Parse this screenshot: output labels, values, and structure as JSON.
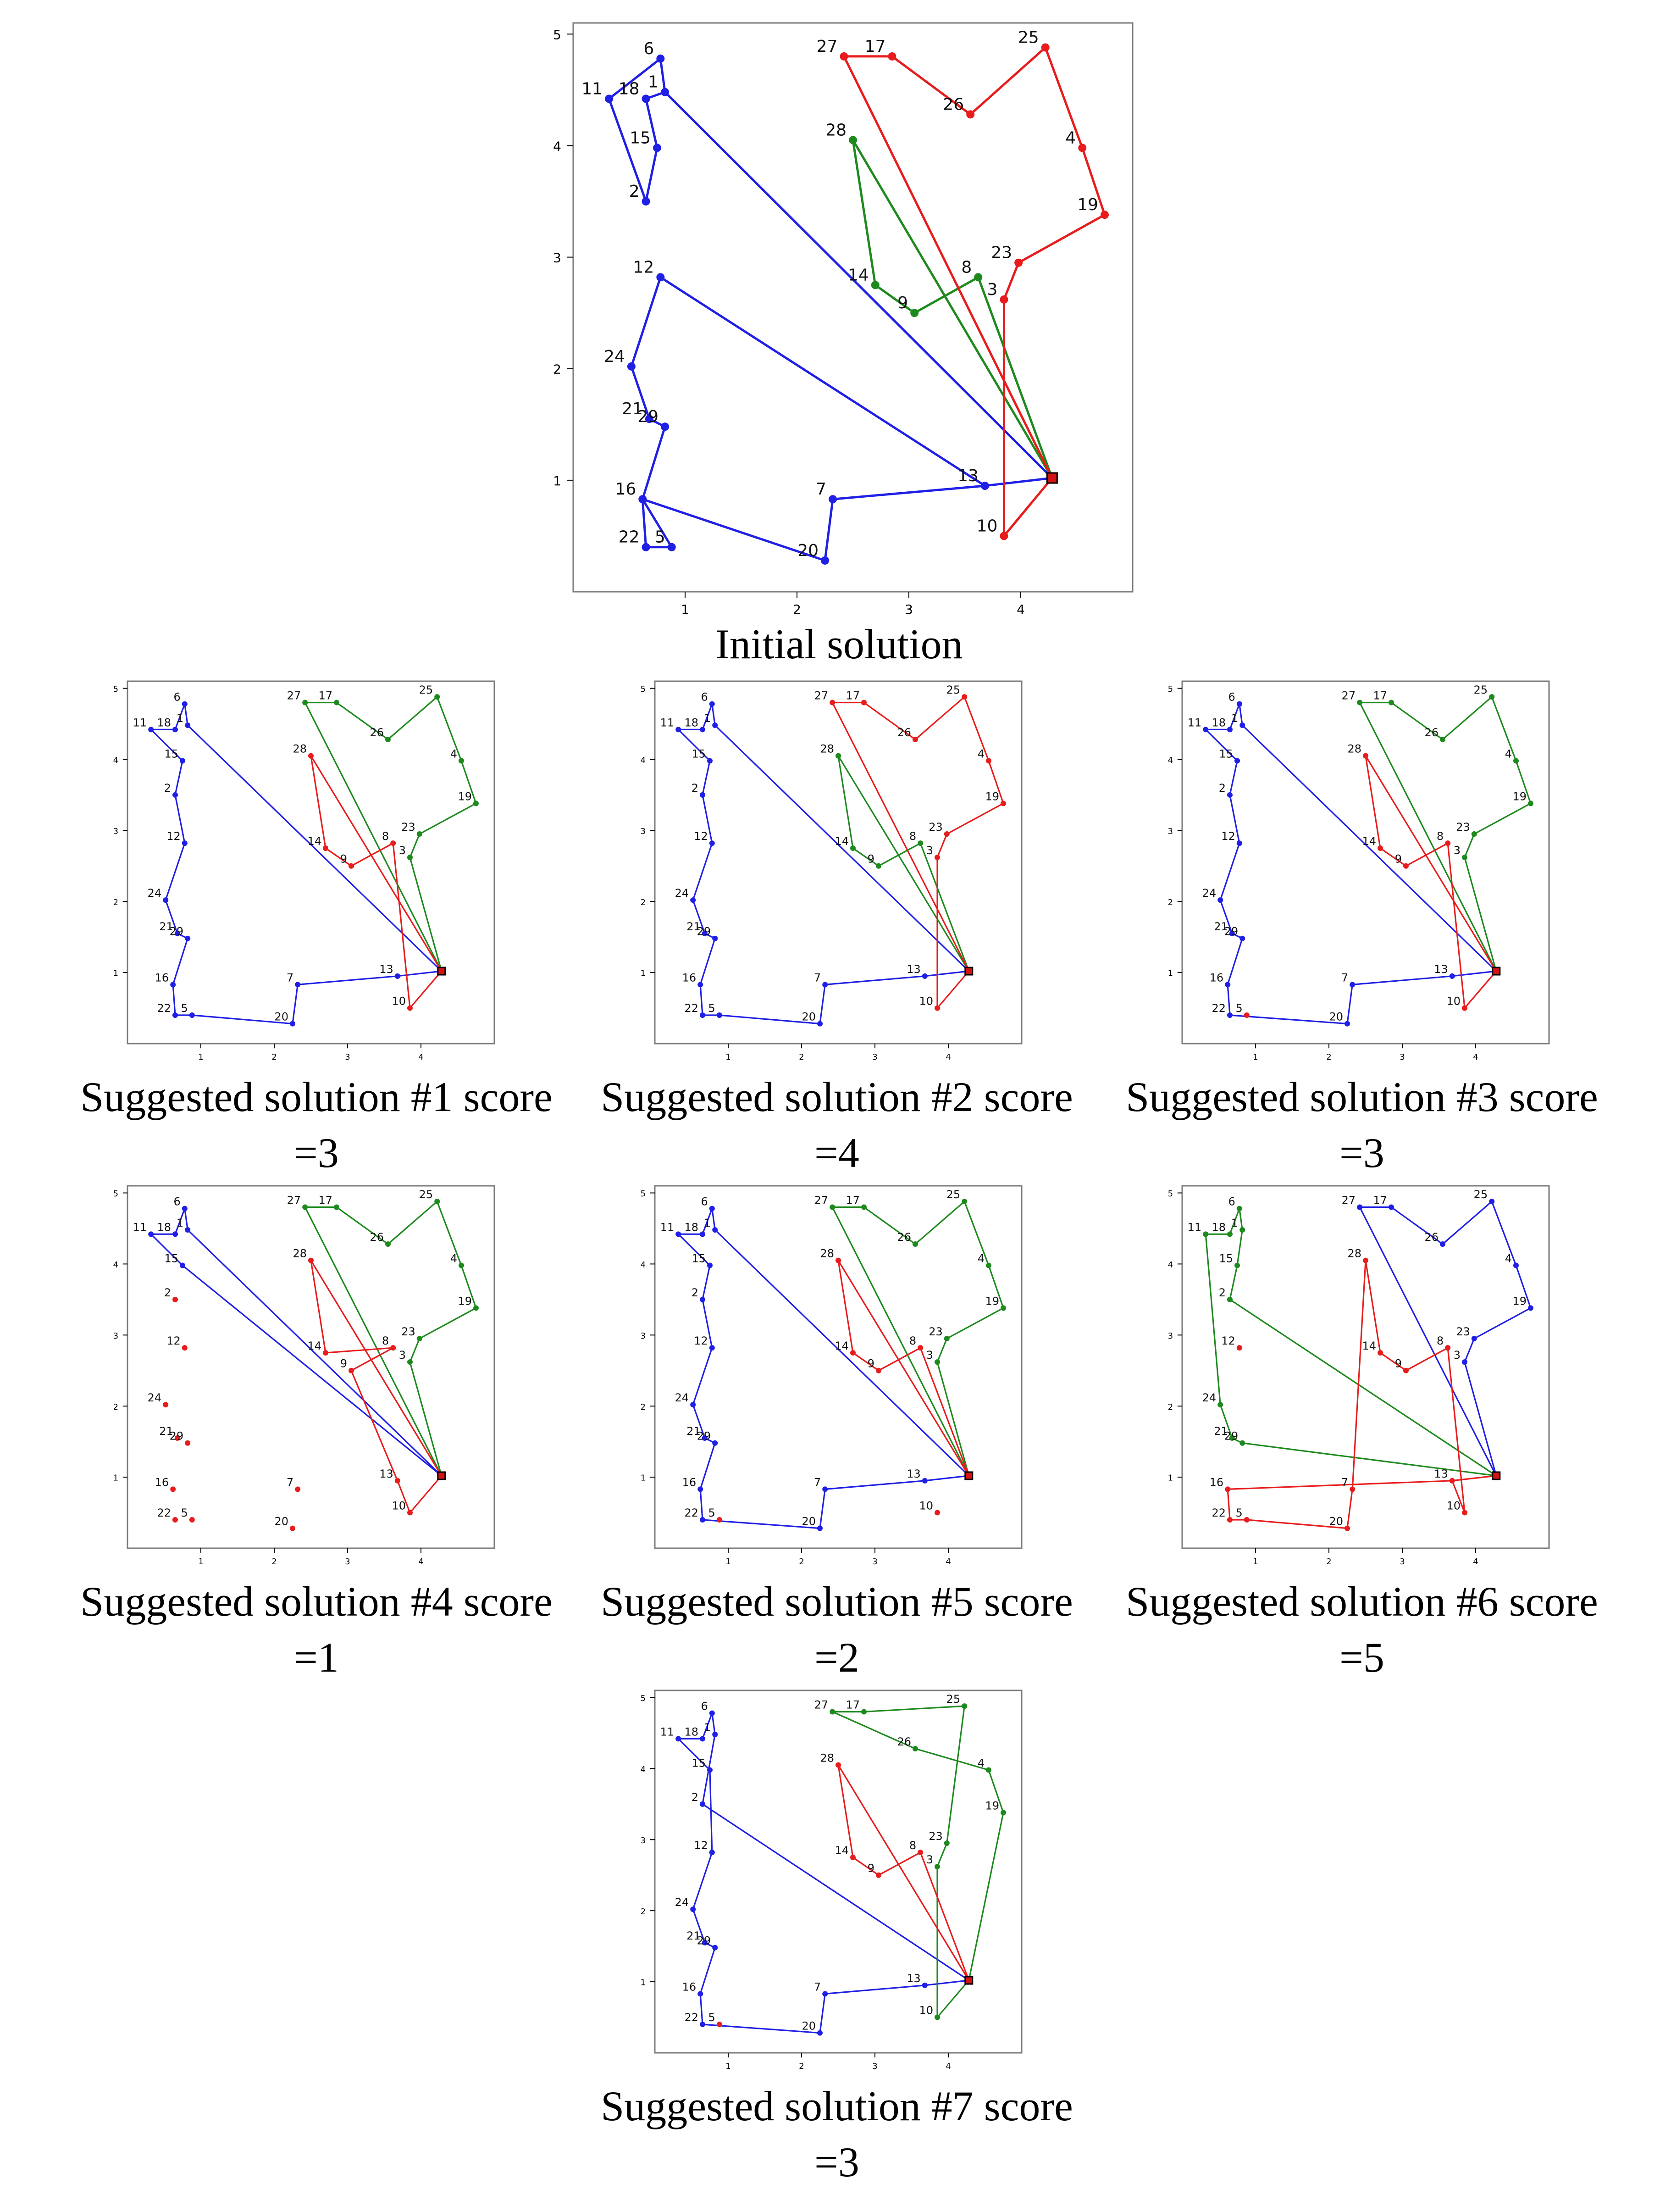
{
  "colors": {
    "blue": "#1f1fe6",
    "red": "#e81c1c",
    "green": "#1e8a1e",
    "depot": "#d41414",
    "axis": "#000000",
    "frame": "#7a7a7a"
  },
  "axis": {
    "xticks": [
      "1",
      "2",
      "3",
      "4"
    ],
    "yticks": [
      "1",
      "2",
      "3",
      "4",
      "5"
    ]
  },
  "points": {
    "1": [
      0.82,
      4.48
    ],
    "2": [
      0.65,
      3.5
    ],
    "3": [
      3.85,
      2.62
    ],
    "4": [
      4.55,
      3.98
    ],
    "5": [
      0.88,
      0.4
    ],
    "6": [
      0.78,
      4.78
    ],
    "7": [
      2.32,
      0.83
    ],
    "8": [
      3.62,
      2.82
    ],
    "9": [
      3.05,
      2.5
    ],
    "10": [
      3.85,
      0.5
    ],
    "11": [
      0.32,
      4.42
    ],
    "12": [
      0.78,
      2.82
    ],
    "13": [
      3.68,
      0.95
    ],
    "14": [
      2.7,
      2.75
    ],
    "15": [
      0.75,
      3.98
    ],
    "16": [
      0.62,
      0.83
    ],
    "17": [
      2.85,
      4.8
    ],
    "18": [
      0.65,
      4.42
    ],
    "19": [
      4.75,
      3.38
    ],
    "20": [
      2.25,
      0.28
    ],
    "21": [
      0.68,
      1.55
    ],
    "22": [
      0.65,
      0.4
    ],
    "23": [
      3.98,
      2.95
    ],
    "24": [
      0.52,
      2.02
    ],
    "25": [
      4.22,
      4.88
    ],
    "26": [
      3.55,
      4.28
    ],
    "27": [
      2.42,
      4.8
    ],
    "28": [
      2.5,
      4.05
    ],
    "29": [
      0.82,
      1.48
    ]
  },
  "depot": [
    4.28,
    1.02
  ],
  "panels": [
    {
      "caption_line1": "Initial solution",
      "caption_line2": "",
      "routes": [
        {
          "color": "blue",
          "path": [
            0,
            13,
            12,
            24,
            21,
            29,
            16,
            5,
            22,
            16,
            20,
            7,
            13,
            0
          ]
        },
        {
          "color": "blue",
          "path": [
            0,
            1,
            6,
            11,
            2,
            15,
            18,
            1,
            0
          ]
        },
        {
          "color": "green",
          "path": [
            0,
            28,
            14,
            9,
            8,
            0
          ]
        },
        {
          "color": "red",
          "path": [
            0,
            27,
            17,
            26,
            25,
            4,
            19,
            23,
            3,
            10,
            0
          ]
        }
      ],
      "isolated": []
    },
    {
      "caption_line1": "Suggested solution #1 score",
      "caption_line2": "=3",
      "routes": [
        {
          "color": "blue",
          "path": [
            0,
            1,
            6,
            18,
            11,
            15,
            2,
            12,
            24,
            21,
            29,
            16,
            22,
            5,
            20,
            7,
            13,
            0
          ]
        },
        {
          "color": "green",
          "path": [
            0,
            27,
            17,
            26,
            25,
            4,
            19,
            23,
            3,
            0
          ]
        },
        {
          "color": "red",
          "path": [
            0,
            28,
            14,
            9,
            8,
            10,
            0
          ]
        }
      ],
      "isolated": []
    },
    {
      "caption_line1": "Suggested solution #2 score",
      "caption_line2": "=4",
      "routes": [
        {
          "color": "blue",
          "path": [
            0,
            1,
            6,
            18,
            11,
            15,
            2,
            12,
            24,
            21,
            29,
            16,
            22,
            5,
            20,
            7,
            13,
            0
          ]
        },
        {
          "color": "green",
          "path": [
            0,
            28,
            14,
            9,
            8,
            0
          ]
        },
        {
          "color": "red",
          "path": [
            0,
            27,
            17,
            26,
            25,
            4,
            19,
            23,
            3,
            10,
            0
          ]
        }
      ],
      "isolated": []
    },
    {
      "caption_line1": "Suggested solution #3 score",
      "caption_line2": "=3",
      "routes": [
        {
          "color": "blue",
          "path": [
            0,
            1,
            6,
            18,
            11,
            15,
            2,
            12,
            24,
            21,
            29,
            16,
            22,
            20,
            7,
            13,
            0
          ]
        },
        {
          "color": "green",
          "path": [
            0,
            27,
            17,
            26,
            25,
            4,
            19,
            23,
            3,
            0
          ]
        },
        {
          "color": "red",
          "path": [
            0,
            28,
            14,
            9,
            8,
            10,
            0
          ]
        }
      ],
      "isolated": [
        "5"
      ]
    },
    {
      "caption_line1": "Suggested solution #4 score",
      "caption_line2": "=1",
      "routes": [
        {
          "color": "blue",
          "path": [
            0,
            1,
            6,
            18,
            11,
            15,
            0
          ]
        },
        {
          "color": "green",
          "path": [
            0,
            27,
            17,
            26,
            25,
            4,
            19,
            23,
            3,
            0
          ]
        },
        {
          "color": "red",
          "path": [
            0,
            28,
            14,
            8,
            9,
            13,
            10,
            0
          ]
        }
      ],
      "isolated": [
        "2",
        "12",
        "24",
        "21",
        "29",
        "16",
        "22",
        "5",
        "20",
        "7"
      ]
    },
    {
      "caption_line1": "Suggested solution #5 score",
      "caption_line2": "=2",
      "routes": [
        {
          "color": "blue",
          "path": [
            0,
            1,
            6,
            18,
            11,
            15,
            2,
            12,
            24,
            21,
            29,
            16,
            22,
            20,
            7,
            13,
            0
          ]
        },
        {
          "color": "green",
          "path": [
            0,
            27,
            17,
            26,
            25,
            4,
            19,
            23,
            3,
            0
          ]
        },
        {
          "color": "red",
          "path": [
            0,
            28,
            14,
            9,
            8,
            0
          ]
        }
      ],
      "isolated": [
        "5",
        "10"
      ]
    },
    {
      "caption_line1": "Suggested solution #6 score",
      "caption_line2": "=5",
      "routes": [
        {
          "color": "green",
          "path": [
            0,
            2,
            15,
            1,
            6,
            18,
            11,
            24,
            21,
            29,
            0
          ]
        },
        {
          "color": "blue",
          "path": [
            0,
            27,
            17,
            26,
            25,
            4,
            19,
            23,
            3,
            0
          ]
        },
        {
          "color": "red",
          "path": [
            0,
            13,
            10,
            8,
            9,
            14,
            28,
            7,
            20,
            5,
            22,
            16,
            13,
            0
          ]
        }
      ],
      "isolated": [
        "12"
      ]
    },
    {
      "caption_line1": "Suggested solution #7 score",
      "caption_line2": "=3",
      "routes": [
        {
          "color": "blue",
          "path": [
            0,
            2,
            1,
            6,
            18,
            11,
            15,
            12,
            24,
            21,
            29,
            16,
            22,
            20,
            7,
            13,
            0
          ]
        },
        {
          "color": "green",
          "path": [
            0,
            10,
            3,
            23,
            25,
            17,
            27,
            26,
            4,
            19,
            0
          ]
        },
        {
          "color": "red",
          "path": [
            0,
            28,
            14,
            9,
            8,
            0
          ]
        }
      ],
      "isolated": [
        "5"
      ]
    }
  ],
  "chart_data": {
    "type": "scatter",
    "xlim": [
      0.0,
      5.0
    ],
    "ylim": [
      0.0,
      5.1
    ],
    "grid": false,
    "depot": [
      4.28,
      1.02
    ],
    "nodes": {
      "1": [
        0.82,
        4.48
      ],
      "2": [
        0.65,
        3.5
      ],
      "3": [
        3.85,
        2.62
      ],
      "4": [
        4.55,
        3.98
      ],
      "5": [
        0.88,
        0.4
      ],
      "6": [
        0.78,
        4.78
      ],
      "7": [
        2.32,
        0.83
      ],
      "8": [
        3.62,
        2.82
      ],
      "9": [
        3.05,
        2.5
      ],
      "10": [
        3.85,
        0.5
      ],
      "11": [
        0.32,
        4.42
      ],
      "12": [
        0.78,
        2.82
      ],
      "13": [
        3.68,
        0.95
      ],
      "14": [
        2.7,
        2.75
      ],
      "15": [
        0.75,
        3.98
      ],
      "16": [
        0.62,
        0.83
      ],
      "17": [
        2.85,
        4.8
      ],
      "18": [
        0.65,
        4.42
      ],
      "19": [
        4.75,
        3.38
      ],
      "20": [
        2.25,
        0.28
      ],
      "21": [
        0.68,
        1.55
      ],
      "22": [
        0.65,
        0.4
      ],
      "23": [
        3.98,
        2.95
      ],
      "24": [
        0.52,
        2.02
      ],
      "25": [
        4.22,
        4.88
      ],
      "26": [
        3.55,
        4.28
      ],
      "27": [
        2.42,
        4.8
      ],
      "28": [
        2.5,
        4.05
      ],
      "29": [
        0.82,
        1.48
      ]
    },
    "solutions": [
      "Initial solution",
      "Suggested solution #1 score =3",
      "Suggested solution #2 score =4",
      "Suggested solution #3 score =3",
      "Suggested solution #4 score =1",
      "Suggested solution #5 score =2",
      "Suggested solution #6 score =5",
      "Suggested solution #7 score =3"
    ]
  }
}
